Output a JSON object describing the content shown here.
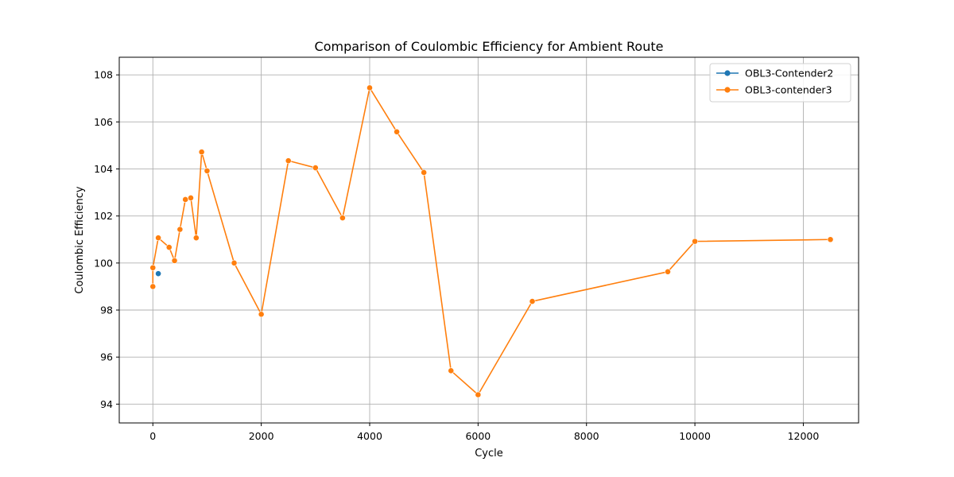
{
  "chart_data": {
    "type": "line",
    "title": "Comparison of Coulombic Efficiency for Ambient Route",
    "xlabel": "Cycle",
    "ylabel": "Coulombic Efficiency",
    "xlim": [
      -620,
      13020
    ],
    "ylim": [
      93.2,
      108.75
    ],
    "xticks": [
      0,
      2000,
      4000,
      6000,
      8000,
      10000,
      12000
    ],
    "yticks": [
      94,
      96,
      98,
      100,
      102,
      104,
      106,
      108
    ],
    "grid": true,
    "legend_position": "top-right",
    "series": [
      {
        "name": "OBL3-Contender2",
        "color": "#1f77b4",
        "x": [
          100
        ],
        "y": [
          99.55
        ]
      },
      {
        "name": "OBL3-contender3",
        "color": "#ff7f0e",
        "x": [
          0,
          0,
          100,
          300,
          400,
          500,
          600,
          700,
          800,
          900,
          1000,
          1500,
          2000,
          2500,
          3000,
          3500,
          4000,
          4500,
          5000,
          5500,
          6000,
          7000,
          9500,
          10000,
          12500
        ],
        "y": [
          99.0,
          99.8,
          101.07,
          100.67,
          100.1,
          101.43,
          102.7,
          102.77,
          101.07,
          104.72,
          103.92,
          100.0,
          97.82,
          104.35,
          104.05,
          101.92,
          107.45,
          105.58,
          103.85,
          95.42,
          94.4,
          98.37,
          99.63,
          100.92,
          101.0
        ]
      }
    ]
  }
}
